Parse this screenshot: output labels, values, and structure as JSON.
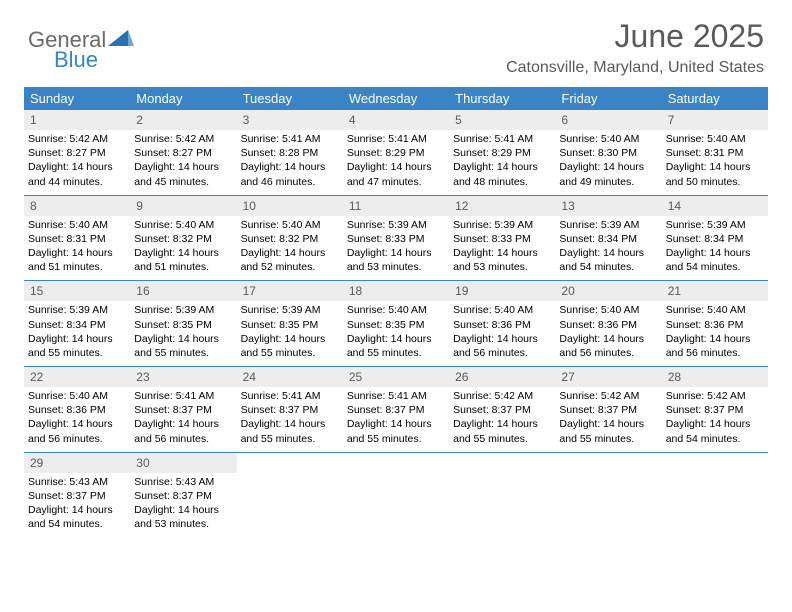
{
  "brand": {
    "part1": "General",
    "part2": "Blue"
  },
  "title": "June 2025",
  "location": "Catonsville, Maryland, United States",
  "colors": {
    "header_bg": "#3a84c6",
    "header_text": "#ffffff",
    "daynum_bg": "#ededed",
    "daynum_text": "#5a5a5a",
    "body_text": "#000000",
    "title_text": "#5a5a5a",
    "page_bg": "#ffffff",
    "week_border": "#3a84c6"
  },
  "typography": {
    "title_fontsize": 32,
    "location_fontsize": 16,
    "dayhead_fontsize": 13,
    "daynum_fontsize": 12,
    "cell_fontsize": 10.5
  },
  "dayheads": [
    "Sunday",
    "Monday",
    "Tuesday",
    "Wednesday",
    "Thursday",
    "Friday",
    "Saturday"
  ],
  "weeks": [
    [
      {
        "n": "1",
        "sr": "Sunrise: 5:42 AM",
        "ss": "Sunset: 8:27 PM",
        "dl": "Daylight: 14 hours and 44 minutes."
      },
      {
        "n": "2",
        "sr": "Sunrise: 5:42 AM",
        "ss": "Sunset: 8:27 PM",
        "dl": "Daylight: 14 hours and 45 minutes."
      },
      {
        "n": "3",
        "sr": "Sunrise: 5:41 AM",
        "ss": "Sunset: 8:28 PM",
        "dl": "Daylight: 14 hours and 46 minutes."
      },
      {
        "n": "4",
        "sr": "Sunrise: 5:41 AM",
        "ss": "Sunset: 8:29 PM",
        "dl": "Daylight: 14 hours and 47 minutes."
      },
      {
        "n": "5",
        "sr": "Sunrise: 5:41 AM",
        "ss": "Sunset: 8:29 PM",
        "dl": "Daylight: 14 hours and 48 minutes."
      },
      {
        "n": "6",
        "sr": "Sunrise: 5:40 AM",
        "ss": "Sunset: 8:30 PM",
        "dl": "Daylight: 14 hours and 49 minutes."
      },
      {
        "n": "7",
        "sr": "Sunrise: 5:40 AM",
        "ss": "Sunset: 8:31 PM",
        "dl": "Daylight: 14 hours and 50 minutes."
      }
    ],
    [
      {
        "n": "8",
        "sr": "Sunrise: 5:40 AM",
        "ss": "Sunset: 8:31 PM",
        "dl": "Daylight: 14 hours and 51 minutes."
      },
      {
        "n": "9",
        "sr": "Sunrise: 5:40 AM",
        "ss": "Sunset: 8:32 PM",
        "dl": "Daylight: 14 hours and 51 minutes."
      },
      {
        "n": "10",
        "sr": "Sunrise: 5:40 AM",
        "ss": "Sunset: 8:32 PM",
        "dl": "Daylight: 14 hours and 52 minutes."
      },
      {
        "n": "11",
        "sr": "Sunrise: 5:39 AM",
        "ss": "Sunset: 8:33 PM",
        "dl": "Daylight: 14 hours and 53 minutes."
      },
      {
        "n": "12",
        "sr": "Sunrise: 5:39 AM",
        "ss": "Sunset: 8:33 PM",
        "dl": "Daylight: 14 hours and 53 minutes."
      },
      {
        "n": "13",
        "sr": "Sunrise: 5:39 AM",
        "ss": "Sunset: 8:34 PM",
        "dl": "Daylight: 14 hours and 54 minutes."
      },
      {
        "n": "14",
        "sr": "Sunrise: 5:39 AM",
        "ss": "Sunset: 8:34 PM",
        "dl": "Daylight: 14 hours and 54 minutes."
      }
    ],
    [
      {
        "n": "15",
        "sr": "Sunrise: 5:39 AM",
        "ss": "Sunset: 8:34 PM",
        "dl": "Daylight: 14 hours and 55 minutes."
      },
      {
        "n": "16",
        "sr": "Sunrise: 5:39 AM",
        "ss": "Sunset: 8:35 PM",
        "dl": "Daylight: 14 hours and 55 minutes."
      },
      {
        "n": "17",
        "sr": "Sunrise: 5:39 AM",
        "ss": "Sunset: 8:35 PM",
        "dl": "Daylight: 14 hours and 55 minutes."
      },
      {
        "n": "18",
        "sr": "Sunrise: 5:40 AM",
        "ss": "Sunset: 8:35 PM",
        "dl": "Daylight: 14 hours and 55 minutes."
      },
      {
        "n": "19",
        "sr": "Sunrise: 5:40 AM",
        "ss": "Sunset: 8:36 PM",
        "dl": "Daylight: 14 hours and 56 minutes."
      },
      {
        "n": "20",
        "sr": "Sunrise: 5:40 AM",
        "ss": "Sunset: 8:36 PM",
        "dl": "Daylight: 14 hours and 56 minutes."
      },
      {
        "n": "21",
        "sr": "Sunrise: 5:40 AM",
        "ss": "Sunset: 8:36 PM",
        "dl": "Daylight: 14 hours and 56 minutes."
      }
    ],
    [
      {
        "n": "22",
        "sr": "Sunrise: 5:40 AM",
        "ss": "Sunset: 8:36 PM",
        "dl": "Daylight: 14 hours and 56 minutes."
      },
      {
        "n": "23",
        "sr": "Sunrise: 5:41 AM",
        "ss": "Sunset: 8:37 PM",
        "dl": "Daylight: 14 hours and 56 minutes."
      },
      {
        "n": "24",
        "sr": "Sunrise: 5:41 AM",
        "ss": "Sunset: 8:37 PM",
        "dl": "Daylight: 14 hours and 55 minutes."
      },
      {
        "n": "25",
        "sr": "Sunrise: 5:41 AM",
        "ss": "Sunset: 8:37 PM",
        "dl": "Daylight: 14 hours and 55 minutes."
      },
      {
        "n": "26",
        "sr": "Sunrise: 5:42 AM",
        "ss": "Sunset: 8:37 PM",
        "dl": "Daylight: 14 hours and 55 minutes."
      },
      {
        "n": "27",
        "sr": "Sunrise: 5:42 AM",
        "ss": "Sunset: 8:37 PM",
        "dl": "Daylight: 14 hours and 55 minutes."
      },
      {
        "n": "28",
        "sr": "Sunrise: 5:42 AM",
        "ss": "Sunset: 8:37 PM",
        "dl": "Daylight: 14 hours and 54 minutes."
      }
    ],
    [
      {
        "n": "29",
        "sr": "Sunrise: 5:43 AM",
        "ss": "Sunset: 8:37 PM",
        "dl": "Daylight: 14 hours and 54 minutes."
      },
      {
        "n": "30",
        "sr": "Sunrise: 5:43 AM",
        "ss": "Sunset: 8:37 PM",
        "dl": "Daylight: 14 hours and 53 minutes."
      },
      {
        "empty": true
      },
      {
        "empty": true
      },
      {
        "empty": true
      },
      {
        "empty": true
      },
      {
        "empty": true
      }
    ]
  ]
}
